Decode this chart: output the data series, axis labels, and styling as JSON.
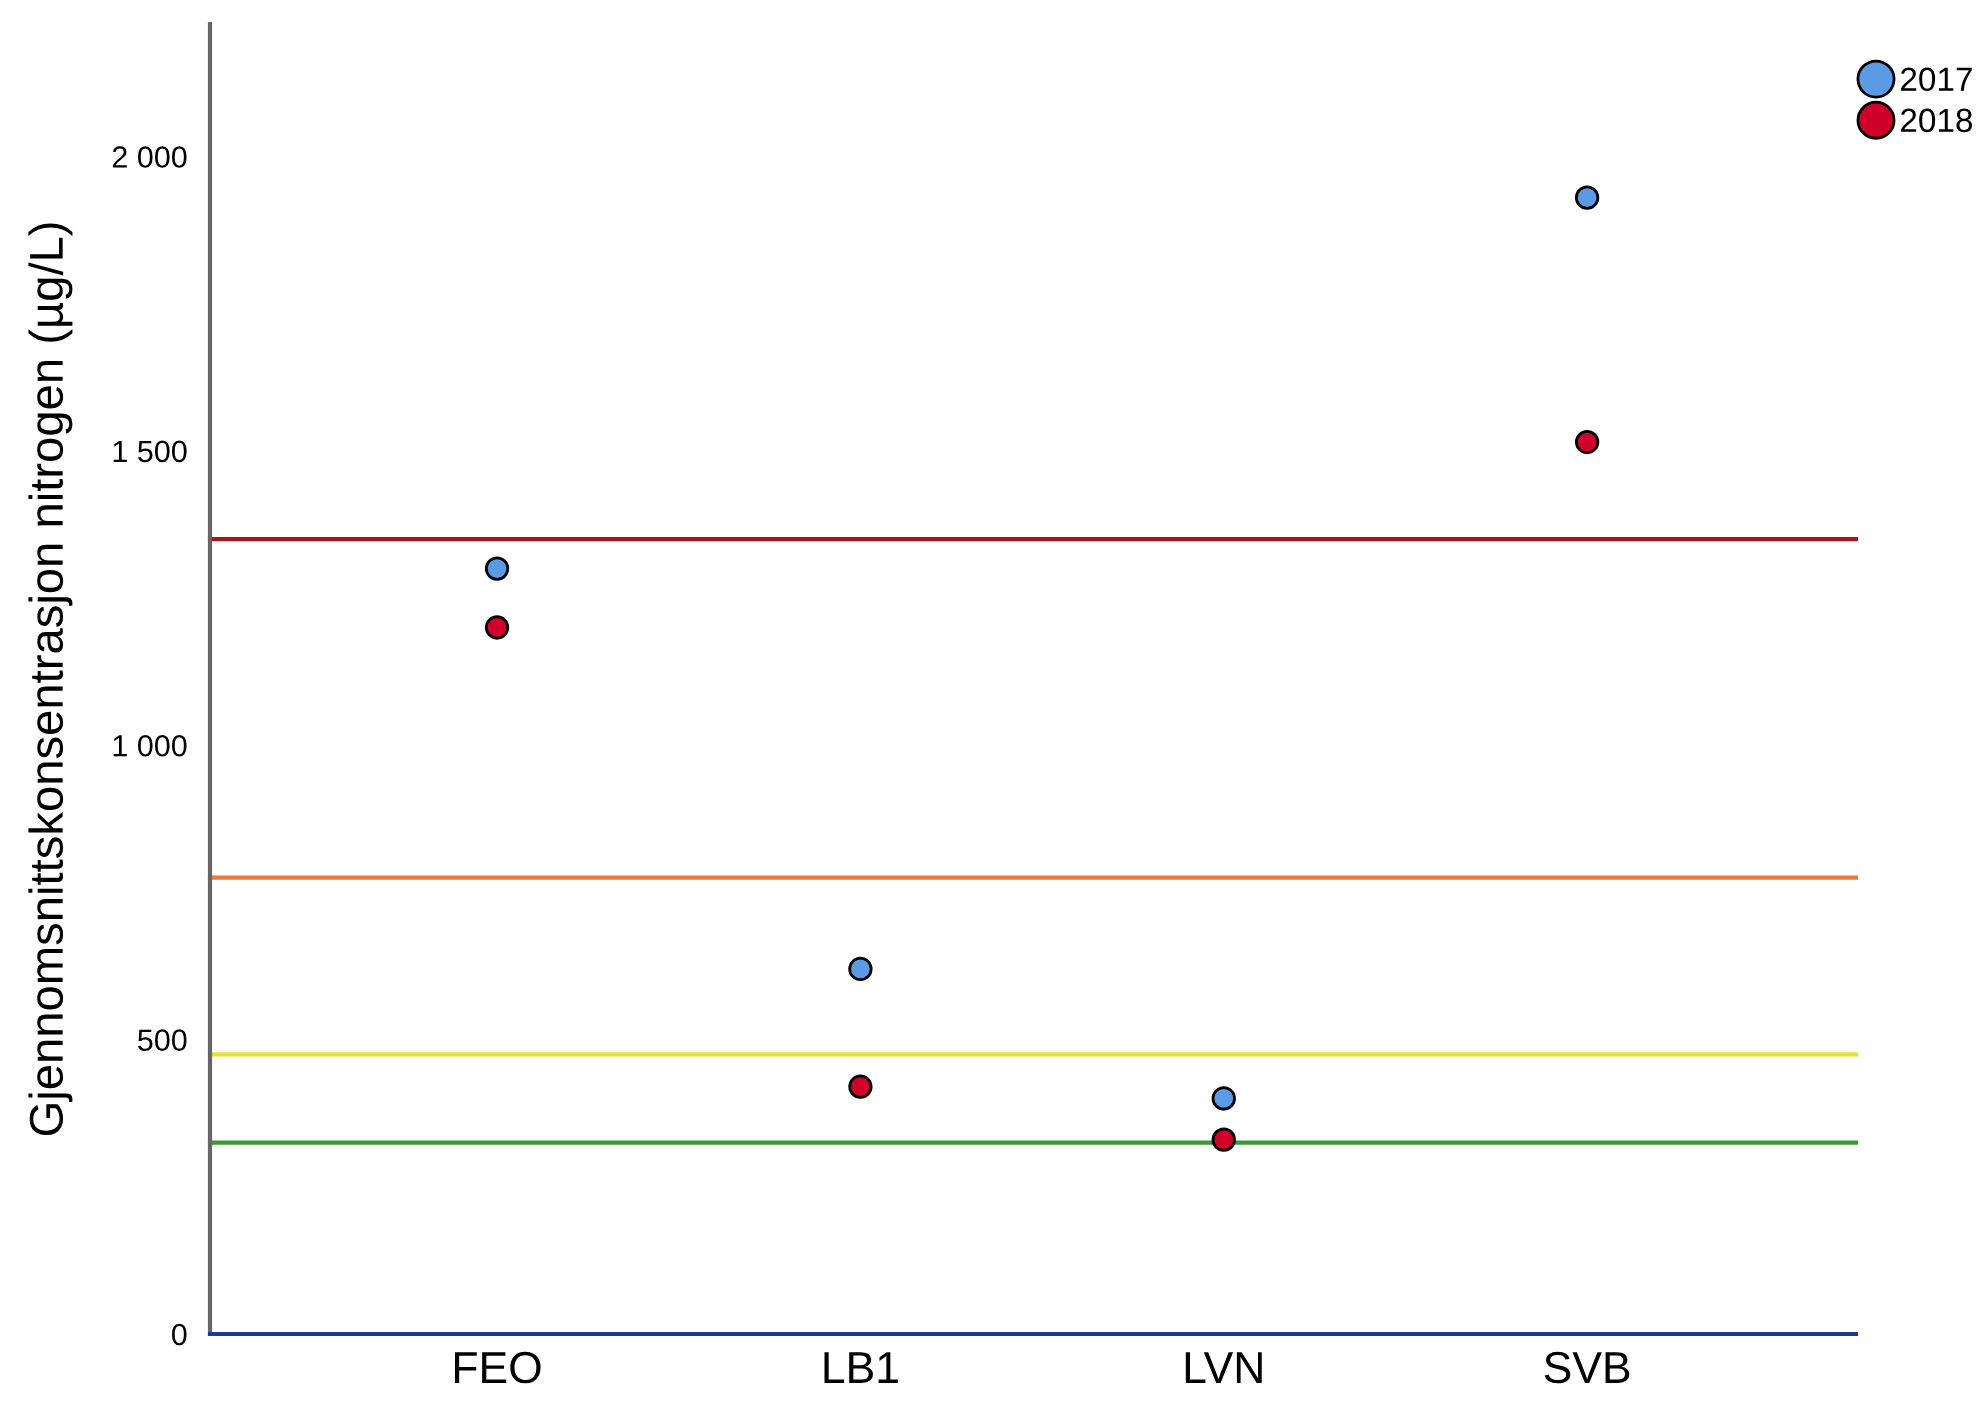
{
  "chart_data": {
    "type": "scatter",
    "ylabel": "Gjennomsnittskonsentrasjon nitrogen (µg/L)",
    "categories": [
      "FEO",
      "LB1",
      "LVN",
      "SVB"
    ],
    "series": [
      {
        "name": "2017",
        "color": "#5b9be6",
        "values": [
          1300,
          620,
          400,
          1930
        ]
      },
      {
        "name": "2018",
        "color": "#d0002a",
        "values": [
          1200,
          420,
          330,
          1515
        ]
      }
    ],
    "ylim": [
      0,
      2225
    ],
    "yticks": [
      0,
      500,
      {
        "value": 1000,
        "label": "1 000"
      },
      {
        "value": 1500,
        "label": "1 500"
      },
      {
        "value": 2000,
        "label": "2 000"
      }
    ],
    "ref_lines": [
      {
        "axis": "y",
        "value": 325,
        "color": "#3a9a30"
      },
      {
        "axis": "y",
        "value": 475,
        "color": "#e8e030"
      },
      {
        "axis": "y",
        "value": 775,
        "color": "#f07838"
      },
      {
        "axis": "y",
        "value": 1350,
        "color": "#a01818"
      }
    ],
    "marker": "circle",
    "grid": false,
    "legend": "top right"
  }
}
